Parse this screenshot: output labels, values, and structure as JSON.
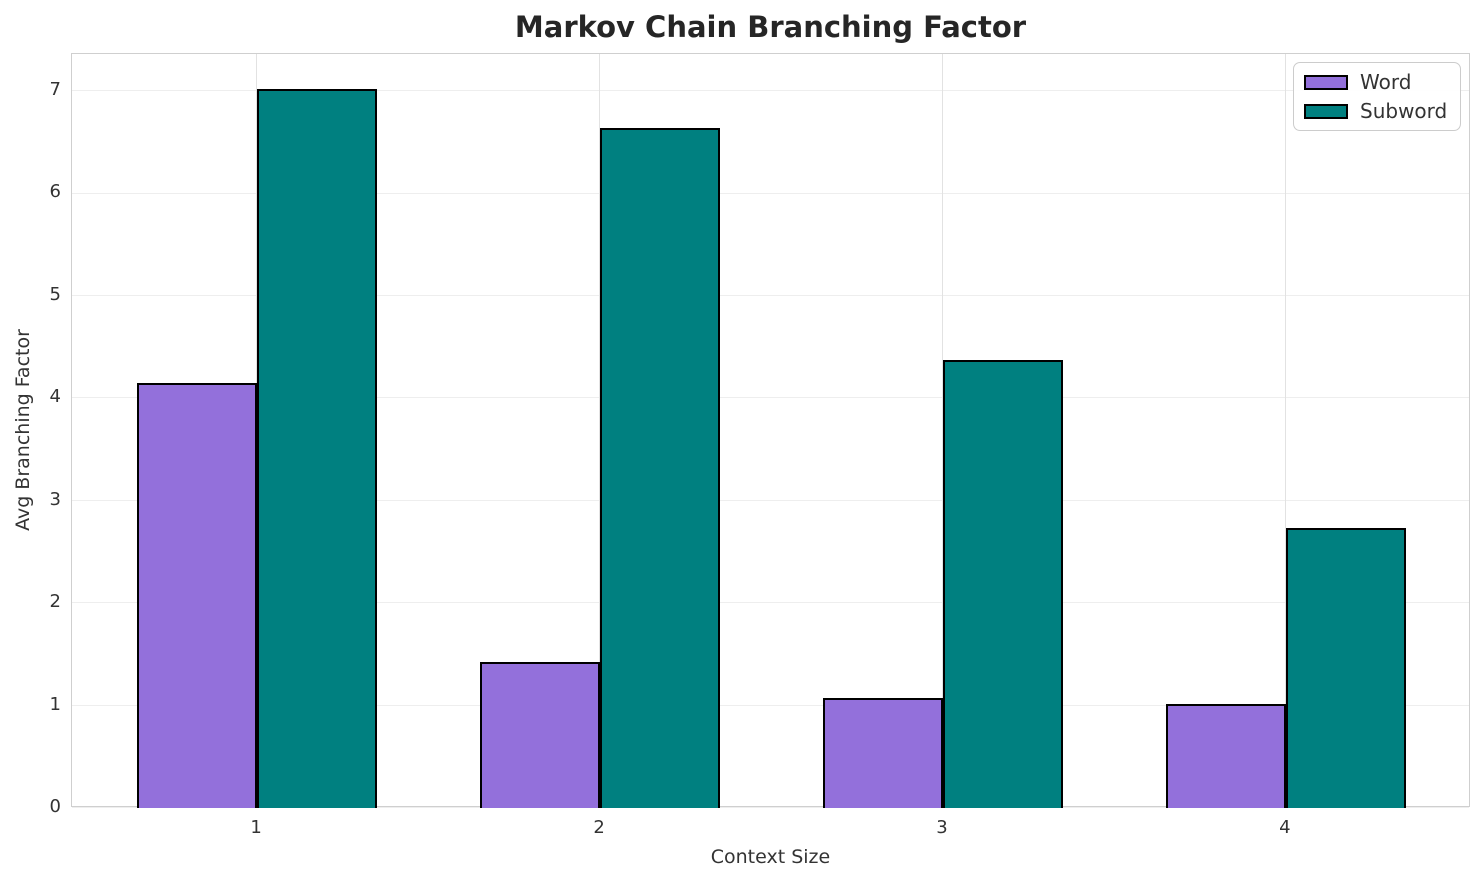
{
  "chart_data": {
    "type": "bar",
    "title": "Markov Chain Branching Factor",
    "xlabel": "Context Size",
    "ylabel": "Avg Branching Factor",
    "categories": [
      "1",
      "2",
      "3",
      "4"
    ],
    "series": [
      {
        "name": "Word",
        "color": "#9370DB",
        "values": [
          4.15,
          1.43,
          1.07,
          1.02
        ]
      },
      {
        "name": "Subword",
        "color": "#008080",
        "values": [
          7.02,
          6.64,
          4.37,
          2.73
        ]
      }
    ],
    "yticks": [
      "0",
      "1",
      "2",
      "3",
      "4",
      "5",
      "6",
      "7"
    ],
    "ylim": [
      0,
      7.36
    ],
    "xlim": [
      0.46,
      4.54
    ],
    "bar_width": 0.35,
    "bar_edge_color": "#000000",
    "grid": true,
    "legend_position": "upper right",
    "colors": {
      "word": "#9370DB",
      "subword": "#008080",
      "spine": "#cfcfcf",
      "grid_h": "#eeeeee",
      "grid_v": "#e2e2e2",
      "text": "#333333",
      "title": "#262626"
    }
  }
}
